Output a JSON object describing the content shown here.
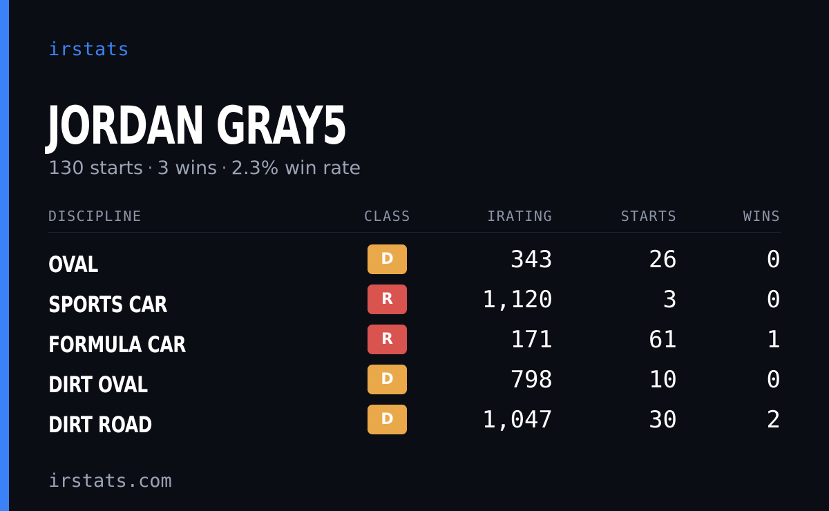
{
  "brand": "irstats",
  "driver": {
    "name": "JORDAN GRAY5"
  },
  "summary": {
    "starts": "130 starts",
    "wins": "3 wins",
    "win_rate": "2.3% win rate",
    "separator": "·"
  },
  "table": {
    "headers": {
      "discipline": "DISCIPLINE",
      "class": "CLASS",
      "irating": "IRATING",
      "starts": "STARTS",
      "wins": "WINS"
    },
    "rows": [
      {
        "discipline": "OVAL",
        "class": "D",
        "class_color": "#e9a94a",
        "irating": "343",
        "starts": "26",
        "wins": "0"
      },
      {
        "discipline": "SPORTS CAR",
        "class": "R",
        "class_color": "#d9534f",
        "irating": "1,120",
        "starts": "3",
        "wins": "0"
      },
      {
        "discipline": "FORMULA CAR",
        "class": "R",
        "class_color": "#d9534f",
        "irating": "171",
        "starts": "61",
        "wins": "1"
      },
      {
        "discipline": "DIRT OVAL",
        "class": "D",
        "class_color": "#e9a94a",
        "irating": "798",
        "starts": "10",
        "wins": "0"
      },
      {
        "discipline": "DIRT ROAD",
        "class": "D",
        "class_color": "#e9a94a",
        "irating": "1,047",
        "starts": "30",
        "wins": "2"
      }
    ]
  },
  "footer": {
    "site": "irstats.com"
  },
  "colors": {
    "accent": "#3b82f6",
    "background": "#0b0d14"
  }
}
